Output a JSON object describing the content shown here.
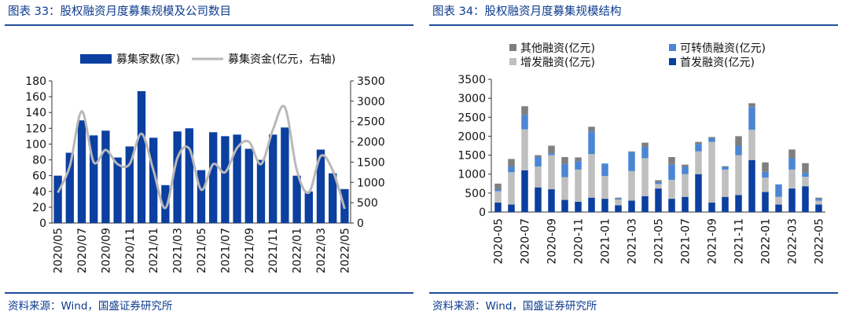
{
  "left": {
    "title": "图表 33：股权融资月度募集规模及公司数目",
    "source": "资料来源：Wind，国盛证券研究所"
  },
  "right": {
    "title": "图表 34：股权融资月度募集规模结构",
    "source": "资料来源：Wind，国盛证券研究所"
  },
  "colors": {
    "bar_blue": "#0b3fa0",
    "line_gray": "#b8b8b8",
    "other_gray": "#7f7f7f",
    "light_gray": "#bfbfbf",
    "conv_blue": "#4a86d4",
    "ipo_navy": "#0b3fa0",
    "rule_blue": "#1f4e9a"
  },
  "chart_data": [
    {
      "type": "bar",
      "title": "",
      "categories": [
        "2020/05",
        "2020/06",
        "2020/07",
        "2020/08",
        "2020/09",
        "2020/10",
        "2020/11",
        "2020/12",
        "2021/01",
        "2021/02",
        "2021/03",
        "2021/04",
        "2021/05",
        "2021/06",
        "2021/07",
        "2021/08",
        "2021/09",
        "2021/10",
        "2021/11",
        "2021/12",
        "2022/01",
        "2022/02",
        "2022/03",
        "2022/04",
        "2022/05"
      ],
      "xticks": [
        "2020/05",
        "2020/07",
        "2020/09",
        "2020/11",
        "2021/01",
        "2021/03",
        "2021/05",
        "2021/07",
        "2021/09",
        "2021/11",
        "2022/01",
        "2022/03",
        "2022/05"
      ],
      "series": [
        {
          "name": "募集家数(家)",
          "type": "bar",
          "axis": "left",
          "values": [
            60,
            89,
            130,
            111,
            117,
            83,
            97,
            167,
            108,
            48,
            116,
            120,
            67,
            115,
            110,
            112,
            94,
            80,
            112,
            121,
            60,
            40,
            93,
            63,
            43
          ]
        },
        {
          "name": "募集资金(亿元，右轴)",
          "type": "line",
          "axis": "right",
          "values": [
            750,
            1400,
            2750,
            1500,
            1800,
            1450,
            1450,
            2200,
            1300,
            370,
            1600,
            1830,
            820,
            1450,
            1250,
            1850,
            2000,
            1450,
            2300,
            2850,
            1300,
            750,
            1650,
            1300,
            350
          ]
        }
      ],
      "ylim_left": [
        0,
        180
      ],
      "yticks_left": [
        0,
        20,
        40,
        60,
        80,
        100,
        120,
        140,
        160,
        180
      ],
      "ylim_right": [
        0,
        3500
      ],
      "yticks_right": [
        0,
        500,
        1000,
        1500,
        2000,
        2500,
        3000,
        3500
      ],
      "legend": "top"
    },
    {
      "type": "bar",
      "stacked": true,
      "title": "",
      "categories": [
        "2020/05",
        "2020/06",
        "2020/07",
        "2020/08",
        "2020/09",
        "2020/10",
        "2020/11",
        "2020/12",
        "2021/01",
        "2021/02",
        "2021/03",
        "2021/04",
        "2021/05",
        "2021/06",
        "2021/07",
        "2021/08",
        "2021/09",
        "2021/10",
        "2021/11",
        "2021/12",
        "2022/01",
        "2022/02",
        "2022/03",
        "2022/04",
        "2022/05"
      ],
      "xticks": [
        "2020-05",
        "2020-07",
        "2020-09",
        "2020-11",
        "2021-01",
        "2021-03",
        "2021-05",
        "2021-07",
        "2021-09",
        "2021-11",
        "2022-01",
        "2022-03",
        "2022-05"
      ],
      "series": [
        {
          "name": "首发融资(亿元)",
          "values": [
            250,
            200,
            1100,
            650,
            600,
            320,
            270,
            380,
            350,
            180,
            300,
            420,
            620,
            350,
            400,
            1000,
            250,
            400,
            450,
            1370,
            530,
            200,
            620,
            680,
            200
          ]
        },
        {
          "name": "增发融资(亿元)",
          "values": [
            300,
            850,
            1080,
            550,
            900,
            600,
            850,
            1150,
            600,
            150,
            780,
            1000,
            120,
            500,
            600,
            600,
            1600,
            720,
            1050,
            800,
            380,
            200,
            500,
            250,
            100
          ]
        },
        {
          "name": "可转债融资(亿元)",
          "values": [
            50,
            150,
            380,
            250,
            50,
            350,
            220,
            590,
            330,
            30,
            500,
            300,
            50,
            400,
            200,
            200,
            100,
            70,
            250,
            600,
            150,
            330,
            300,
            100,
            50
          ]
        },
        {
          "name": "其他融资(亿元)",
          "values": [
            150,
            200,
            230,
            50,
            200,
            180,
            100,
            130,
            0,
            20,
            20,
            110,
            50,
            200,
            50,
            50,
            30,
            20,
            250,
            100,
            250,
            0,
            230,
            260,
            30
          ]
        }
      ],
      "ylim": [
        0,
        3500
      ],
      "yticks": [
        0,
        500,
        1000,
        1500,
        2000,
        2500,
        3000,
        3500
      ],
      "legend": "top"
    }
  ]
}
